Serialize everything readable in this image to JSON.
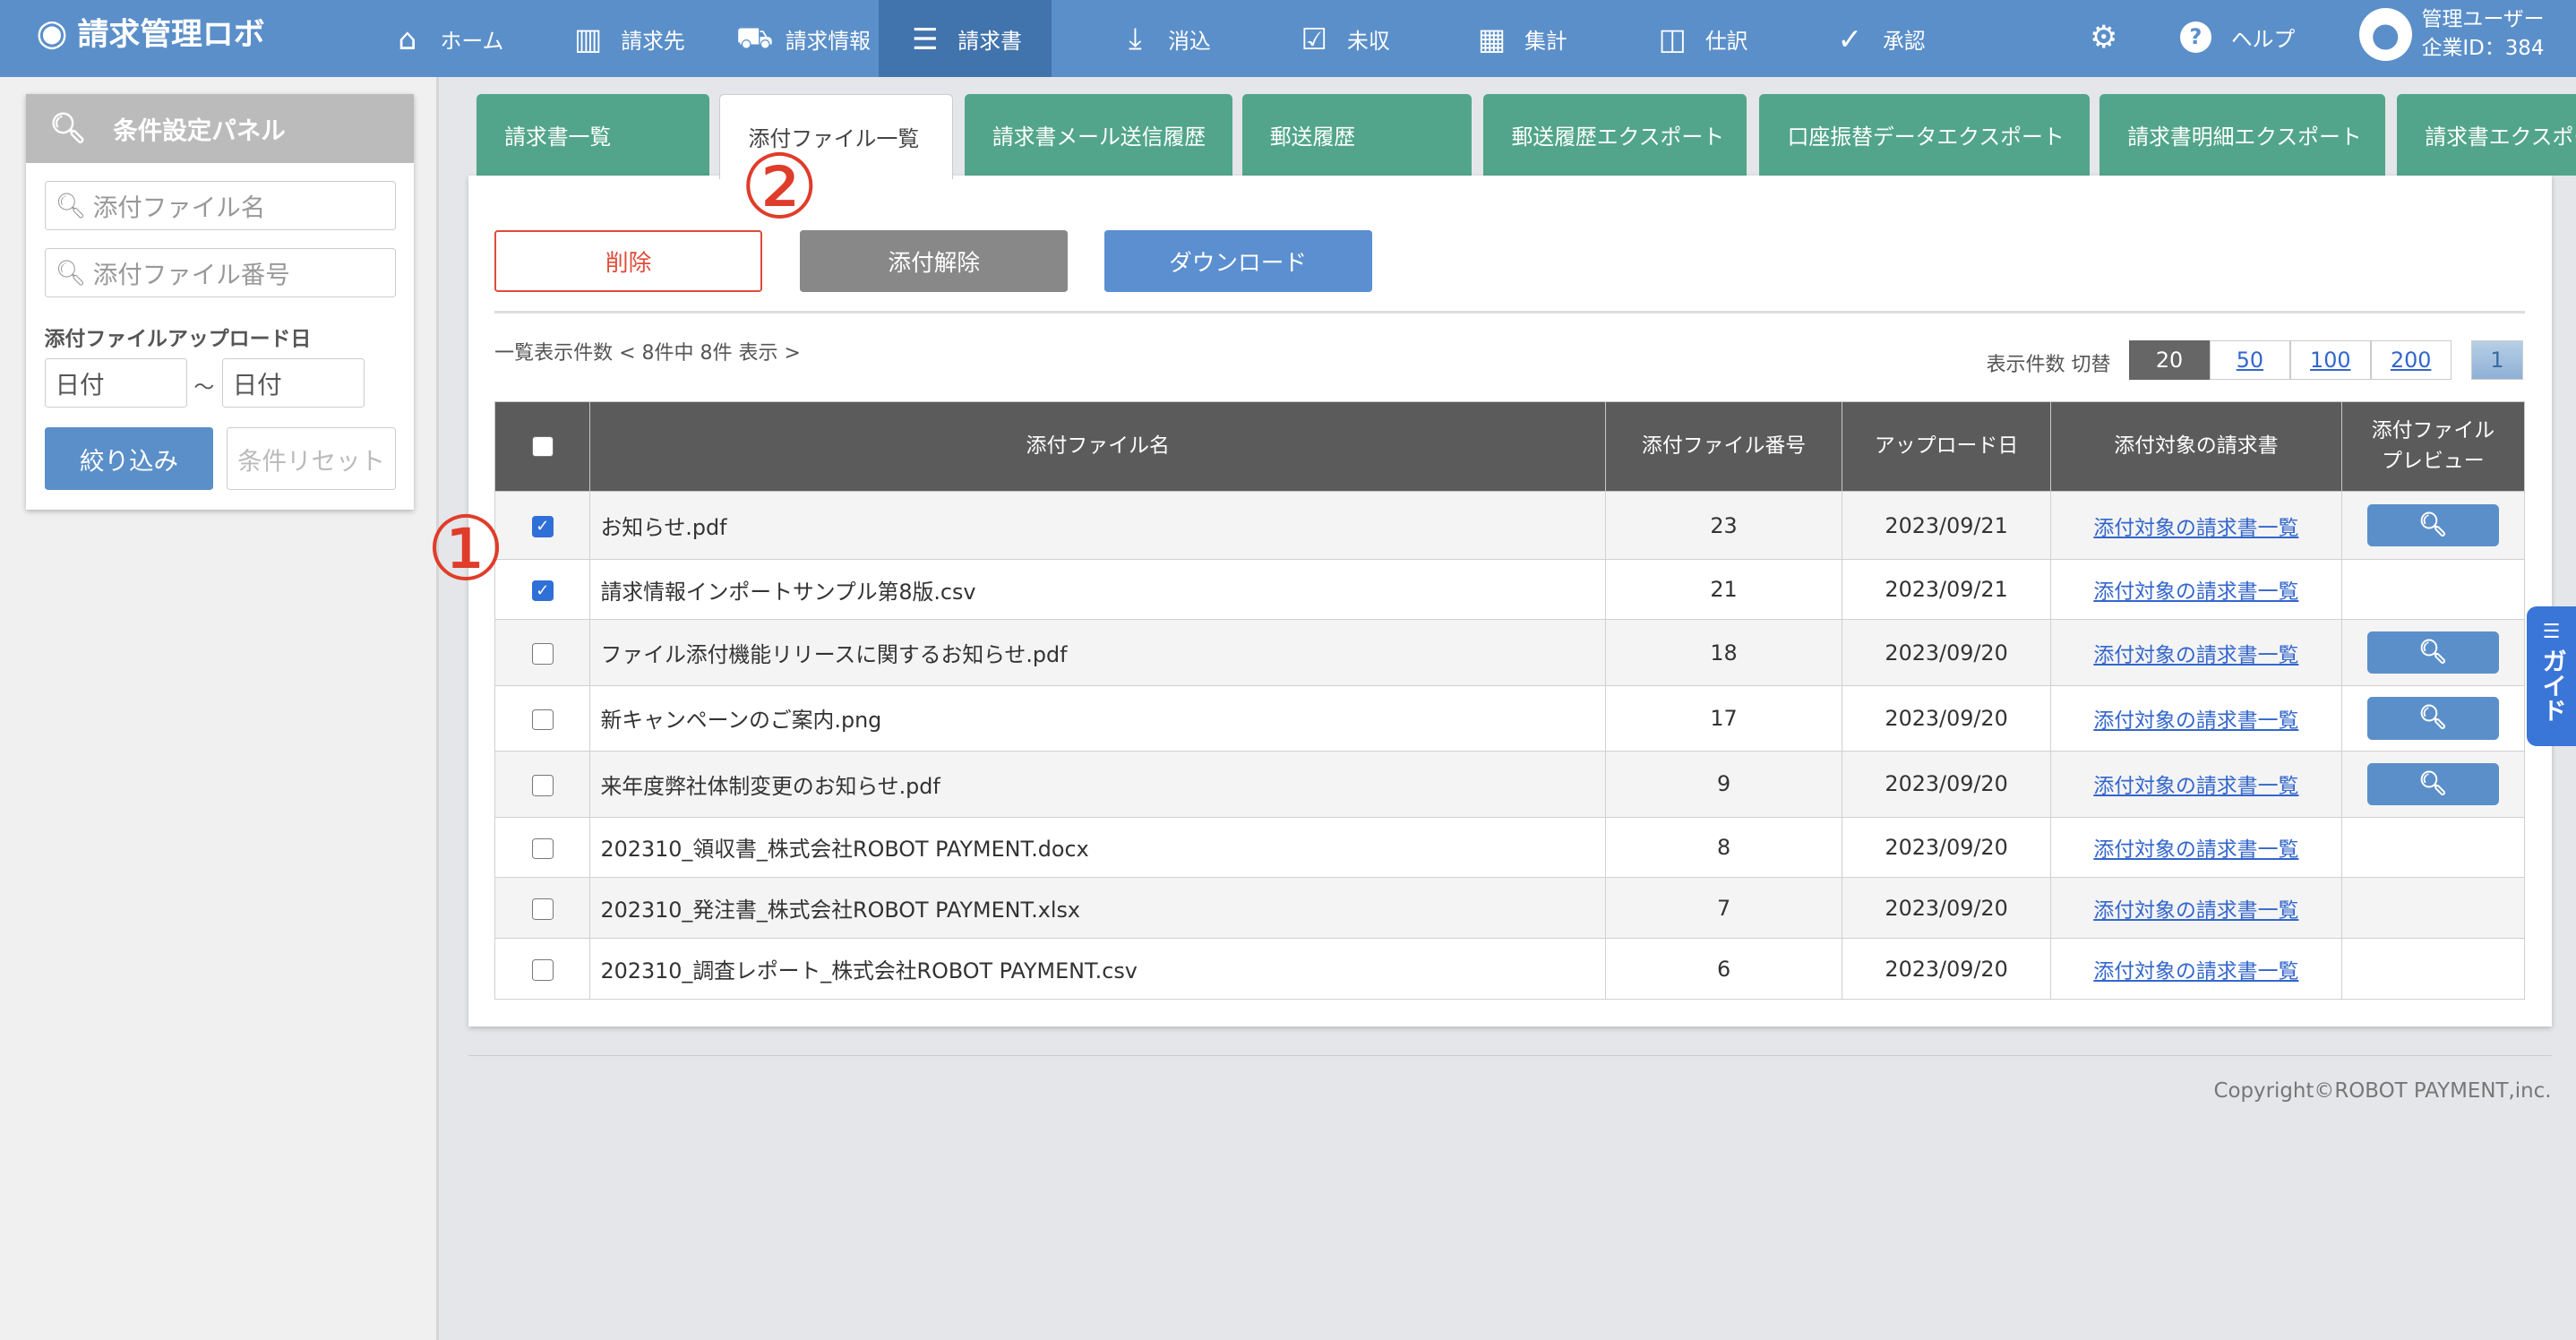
{
  "nav": {
    "logo": "請求管理ロボ",
    "items": [
      {
        "label": "ホーム",
        "icon": "home-icon",
        "glyph": "⌂"
      },
      {
        "label": "請求先",
        "icon": "building-icon",
        "glyph": "▥"
      },
      {
        "label": "請求情報",
        "icon": "inbox-icon",
        "glyph": "⛟"
      },
      {
        "label": "請求書",
        "icon": "list-icon",
        "glyph": "☰"
      },
      {
        "label": "消込",
        "icon": "download-icon",
        "glyph": "⤓"
      },
      {
        "label": "未収",
        "icon": "checkbox-icon",
        "glyph": "☑"
      },
      {
        "label": "集計",
        "icon": "calculator-icon",
        "glyph": "▦"
      },
      {
        "label": "仕訳",
        "icon": "columns-icon",
        "glyph": "◫"
      },
      {
        "label": "承認",
        "icon": "check-circle-icon",
        "glyph": "✓"
      }
    ],
    "help": "ヘルプ",
    "user_name": "管理ユーザー",
    "company_id": "企業ID：384"
  },
  "sidebar": {
    "title": "条件設定パネル",
    "file_name_placeholder": "添付ファイル名",
    "file_number_placeholder": "添付ファイル番号",
    "upload_date_label": "添付ファイルアップロード日",
    "date_from": "日付",
    "tilde": "〜",
    "date_to": "日付",
    "filter_button": "絞り込み",
    "reset_button": "条件リセット"
  },
  "tabs": [
    "請求書一覧",
    "添付ファイル一覧",
    "請求書メール送信履歴",
    "郵送履歴",
    "郵送履歴エクスポート",
    "口座振替データエクスポート",
    "請求書明細エクスポート",
    "請求書エクスポート"
  ],
  "actions": {
    "delete": "削除",
    "detach": "添付解除",
    "download": "ダウンロード"
  },
  "list": {
    "count_text": "一覧表示件数 < 8件中 8件 表示 >",
    "page_size_label": "表示件数 切替",
    "page_sizes": [
      "20",
      "50",
      "100",
      "200"
    ],
    "selected_page_size": "20",
    "current_page": "1"
  },
  "table": {
    "headers": [
      "添付ファイル名",
      "添付ファイル番号",
      "アップロード日",
      "添付対象の請求書",
      "添付ファイル",
      "プレビュー"
    ],
    "link_text": "添付対象の請求書一覧",
    "rows": [
      {
        "checked": true,
        "name": "お知らせ.pdf",
        "number": "23",
        "date": "2023/09/21",
        "preview": true
      },
      {
        "checked": true,
        "name": "請求情報インポートサンプル第8版.csv",
        "number": "21",
        "date": "2023/09/21",
        "preview": false
      },
      {
        "checked": false,
        "name": "ファイル添付機能リリースに関するお知らせ.pdf",
        "number": "18",
        "date": "2023/09/20",
        "preview": true
      },
      {
        "checked": false,
        "name": "新キャンペーンのご案内.png",
        "number": "17",
        "date": "2023/09/20",
        "preview": true
      },
      {
        "checked": false,
        "name": "来年度弊社体制変更のお知らせ.pdf",
        "number": "9",
        "date": "2023/09/20",
        "preview": true
      },
      {
        "checked": false,
        "name": "202310_領収書_株式会社ROBOT PAYMENT.docx",
        "number": "8",
        "date": "2023/09/20",
        "preview": false
      },
      {
        "checked": false,
        "name": "202310_発注書_株式会社ROBOT PAYMENT.xlsx",
        "number": "7",
        "date": "2023/09/20",
        "preview": false
      },
      {
        "checked": false,
        "name": "202310_調査レポート_株式会社ROBOT PAYMENT.csv",
        "number": "6",
        "date": "2023/09/20",
        "preview": false
      }
    ]
  },
  "annotations": [
    "①",
    "②"
  ],
  "guide": "ガイド",
  "footer": "Copyright©ROBOT PAYMENT,inc.",
  "colors": {
    "nav": "#5b8fc9",
    "tab": "#52a58a",
    "danger": "#e03c2a",
    "header": "#5b5b5b"
  }
}
